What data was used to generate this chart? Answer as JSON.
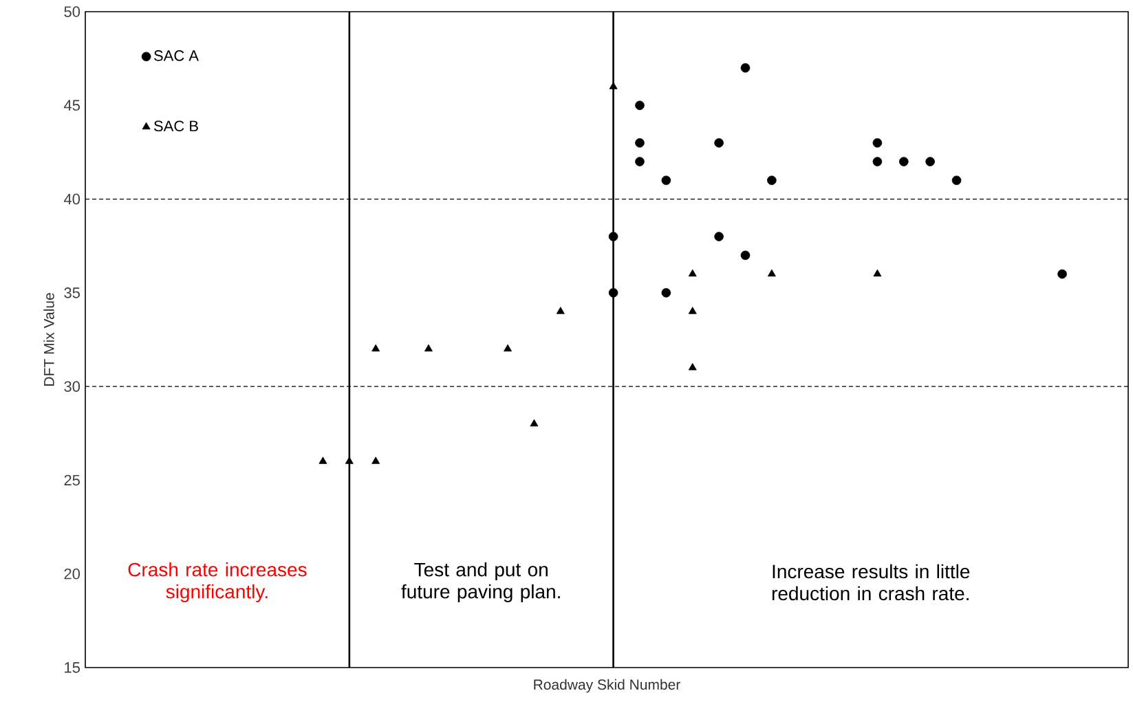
{
  "chart_data": {
    "type": "scatter",
    "xlabel": "Roadway Skid Number",
    "ylabel": "DFT Mix Value",
    "categories": [
      null,
      null,
      null,
      null,
      null,
      null,
      null,
      null,
      null,
      null,
      null,
      null,
      null,
      null,
      null,
      null,
      null,
      null,
      null,
      null,
      null,
      null,
      null,
      null,
      null,
      null,
      null,
      null,
      null,
      null,
      null,
      null,
      null,
      null,
      null,
      null,
      null,
      null,
      null,
      null
    ],
    "ylim": [
      15,
      50
    ],
    "yticks": [
      15,
      20,
      25,
      30,
      35,
      40,
      45,
      50
    ],
    "grid": false,
    "legend": "top left",
    "series": [
      {
        "name": "SAC A",
        "color": "#000000",
        "marker": "circle",
        "values": [
          null,
          null,
          null,
          null,
          null,
          null,
          null,
          null,
          null,
          null,
          null,
          null,
          null,
          null,
          null,
          null,
          null,
          null,
          null,
          null,
          38,
          45,
          41,
          null,
          43,
          47,
          41,
          null,
          null,
          null,
          43,
          42,
          42,
          41,
          null,
          null,
          null,
          36,
          null,
          null
        ]
      },
      {
        "color": "#000000",
        "marker": "circle",
        "values": [
          null,
          null,
          null,
          null,
          null,
          null,
          null,
          null,
          null,
          null,
          null,
          null,
          null,
          null,
          null,
          null,
          null,
          null,
          null,
          null,
          35,
          43,
          35,
          null,
          38,
          37,
          null,
          null,
          null,
          null,
          42,
          null,
          null,
          null,
          null,
          null,
          null,
          null,
          null,
          null
        ]
      },
      {
        "color": "#000000",
        "marker": "circle",
        "values": [
          null,
          null,
          null,
          null,
          null,
          null,
          null,
          null,
          null,
          null,
          null,
          null,
          null,
          null,
          null,
          null,
          null,
          null,
          null,
          null,
          null,
          42,
          null,
          null,
          null,
          null,
          null,
          null,
          null,
          null,
          null,
          null,
          null,
          null,
          null,
          null,
          null,
          null,
          null,
          null
        ]
      },
      {
        "name": "SAC B",
        "color": "#000000",
        "marker": "triangle",
        "values": [
          null,
          null,
          null,
          null,
          null,
          null,
          null,
          null,
          null,
          26,
          26,
          32,
          null,
          32,
          null,
          null,
          32,
          28,
          34,
          null,
          46,
          null,
          null,
          36,
          null,
          null,
          36,
          null,
          null,
          null,
          36,
          null,
          null,
          null,
          null,
          null,
          null,
          null,
          null,
          null
        ]
      },
      {
        "color": "#000000",
        "marker": "triangle",
        "values": [
          null,
          null,
          null,
          null,
          null,
          null,
          null,
          null,
          null,
          null,
          null,
          26,
          null,
          null,
          null,
          null,
          null,
          null,
          null,
          null,
          null,
          null,
          null,
          34,
          null,
          null,
          null,
          null,
          null,
          null,
          null,
          null,
          null,
          null,
          null,
          null,
          null,
          null,
          null,
          null
        ]
      },
      {
        "color": "#000000",
        "marker": "triangle",
        "values": [
          null,
          null,
          null,
          null,
          null,
          null,
          null,
          null,
          null,
          null,
          null,
          null,
          null,
          null,
          null,
          null,
          null,
          null,
          null,
          null,
          null,
          null,
          null,
          31,
          null,
          null,
          null,
          null,
          null,
          null,
          null,
          null,
          null,
          null,
          null,
          null,
          null,
          null,
          null,
          null
        ]
      }
    ],
    "ref_lines": [
      {
        "axis": "y",
        "value": 40,
        "line_style": "dashed",
        "color": "#000000"
      },
      {
        "axis": "y",
        "value": 30,
        "line_style": "dashed",
        "color": "#000000"
      }
    ],
    "annotations": [
      "Crash rate increases significantly.",
      "Test and put on future paving plan.",
      "Increase results in little reduction in crash rate."
    ]
  }
}
